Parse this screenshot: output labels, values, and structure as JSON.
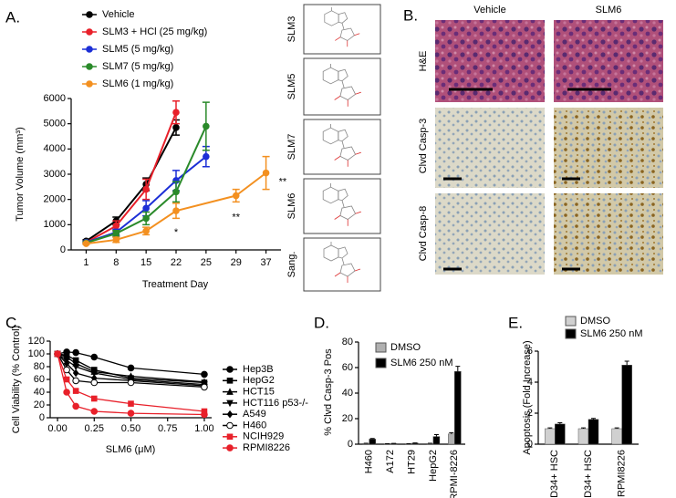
{
  "panels": [
    "A.",
    "B.",
    "C.",
    "D.",
    "E."
  ],
  "structures": [
    "SLM3",
    "SLM5",
    "SLM7",
    "SLM6",
    "Sang."
  ],
  "micrographs": {
    "columns": [
      "Vehicle",
      "SLM6"
    ],
    "rows": [
      "H&E",
      "Clvd Casp-3",
      "Clvd Casp-8"
    ]
  },
  "chart_data": [
    {
      "type": "line",
      "ylabel": "Tumor Volume (mm³)",
      "xlabel": "Treatment Day",
      "categories": [
        "1",
        "8",
        "15",
        "22",
        "25",
        "29",
        "37"
      ],
      "ylim": [
        0,
        6000
      ],
      "yticks": [
        0,
        1000,
        2000,
        3000,
        4000,
        5000,
        6000
      ],
      "legend": "top-left",
      "series": [
        {
          "name": "Vehicle",
          "color": "#000000",
          "marker": "circle",
          "x": [
            "1",
            "8",
            "15",
            "22"
          ],
          "values": [
            350,
            1150,
            2600,
            4850
          ],
          "errors": [
            50,
            150,
            250,
            300
          ]
        },
        {
          "name": "SLM3 + HCl (25 mg/kg)",
          "color": "#e8202a",
          "marker": "circle",
          "x": [
            "1",
            "8",
            "15",
            "22"
          ],
          "values": [
            300,
            950,
            2400,
            5450
          ],
          "errors": [
            40,
            200,
            400,
            450
          ]
        },
        {
          "name": "SLM5 (5 mg/kg)",
          "color": "#1c2fd6",
          "marker": "circle",
          "x": [
            "1",
            "8",
            "15",
            "22",
            "25"
          ],
          "values": [
            300,
            700,
            1650,
            2750,
            3700
          ],
          "errors": [
            40,
            120,
            300,
            400,
            400
          ]
        },
        {
          "name": "SLM7 (5 mg/kg)",
          "color": "#2a8a2a",
          "marker": "circle",
          "x": [
            "1",
            "8",
            "15",
            "22",
            "25"
          ],
          "values": [
            280,
            650,
            1250,
            2300,
            4900
          ],
          "errors": [
            40,
            120,
            250,
            400,
            950
          ]
        },
        {
          "name": "SLM6 (1 mg/kg)",
          "color": "#f39020",
          "marker": "circle",
          "x": [
            "1",
            "8",
            "15",
            "22",
            "29",
            "37"
          ],
          "values": [
            250,
            400,
            750,
            1550,
            2150,
            3050
          ],
          "errors": [
            30,
            100,
            150,
            300,
            250,
            650
          ]
        }
      ],
      "annotations": [
        {
          "text": "*",
          "x": "22"
        },
        {
          "text": "**",
          "x": "29"
        },
        {
          "text": "**",
          "x": "37"
        }
      ]
    },
    {
      "type": "line",
      "ylabel": "Cell Viability (% Control)",
      "xlabel": "SLM6 (μM)",
      "x": [
        0,
        0.0625,
        0.125,
        0.25,
        0.5,
        1
      ],
      "xlim": [
        -0.05,
        1.05
      ],
      "xticks": [
        {
          "value": 0,
          "label": "0.00"
        },
        {
          "value": 0.25,
          "label": "0.25"
        },
        {
          "value": 0.5,
          "label": "0.50"
        },
        {
          "value": 0.75,
          "label": "0.75"
        },
        {
          "value": 1,
          "label": "1.00"
        }
      ],
      "ylim": [
        0,
        120
      ],
      "yticks": [
        0,
        20,
        40,
        60,
        80,
        100,
        120
      ],
      "legend": "right",
      "series": [
        {
          "name": "Hep3B",
          "color": "#000000",
          "marker": "circle",
          "values": [
            100,
            103,
            102,
            95,
            78,
            68
          ]
        },
        {
          "name": "HepG2",
          "color": "#000000",
          "marker": "square",
          "values": [
            100,
            98,
            90,
            75,
            62,
            55
          ]
        },
        {
          "name": "HCT15",
          "color": "#000000",
          "marker": "triangle",
          "values": [
            100,
            95,
            85,
            72,
            65,
            56
          ]
        },
        {
          "name": "HCT116 p53-/-",
          "color": "#000000",
          "marker": "triangle-down",
          "values": [
            100,
            90,
            80,
            70,
            60,
            52
          ]
        },
        {
          "name": "A549",
          "color": "#000000",
          "marker": "diamond",
          "values": [
            100,
            85,
            70,
            62,
            58,
            50
          ]
        },
        {
          "name": "H460",
          "color": "#000000",
          "marker": "circle-open",
          "values": [
            100,
            75,
            58,
            55,
            55,
            48
          ]
        },
        {
          "name": "NCIH929",
          "color": "#e8202a",
          "marker": "square",
          "values": [
            100,
            60,
            42,
            30,
            22,
            10
          ]
        },
        {
          "name": "RPMI8226",
          "color": "#e8202a",
          "marker": "circle",
          "values": [
            100,
            40,
            18,
            10,
            7,
            5
          ]
        }
      ]
    },
    {
      "type": "bar",
      "ylabel": "% Clvd Casp-3 Pos",
      "categories": [
        "H460",
        "A172",
        "HT29",
        "HepG2",
        "RPMI-8226"
      ],
      "ylim": [
        0,
        80
      ],
      "yticks": [
        0,
        20,
        40,
        60,
        80
      ],
      "legend": "top-left",
      "series": [
        {
          "name": "DMSO",
          "color": "#b0b0b0",
          "values": [
            0.5,
            0.3,
            0.3,
            0.5,
            8
          ],
          "errors": [
            0.2,
            0.1,
            0.1,
            0.2,
            1
          ]
        },
        {
          "name": "SLM6 250 nM",
          "color": "#000000",
          "values": [
            4,
            0.5,
            0.8,
            6,
            57
          ],
          "errors": [
            0.5,
            0.1,
            0.2,
            1.5,
            4
          ]
        }
      ]
    },
    {
      "type": "bar",
      "ylabel": "Apoptosis (Fold Increase)",
      "categories": [
        "CD34+ HSC",
        "CD34+ HSC",
        "RPMI8226"
      ],
      "ylim": [
        0,
        6
      ],
      "yticks": [
        0,
        2,
        4,
        6
      ],
      "legend": "top",
      "series": [
        {
          "name": "DMSO",
          "color": "#d0d0d0",
          "values": [
            1,
            1,
            1
          ],
          "errors": [
            0.05,
            0.05,
            0.05
          ]
        },
        {
          "name": "SLM6 250 nM",
          "color": "#000000",
          "values": [
            1.3,
            1.6,
            5.1
          ],
          "errors": [
            0.08,
            0.06,
            0.25
          ]
        }
      ]
    }
  ]
}
